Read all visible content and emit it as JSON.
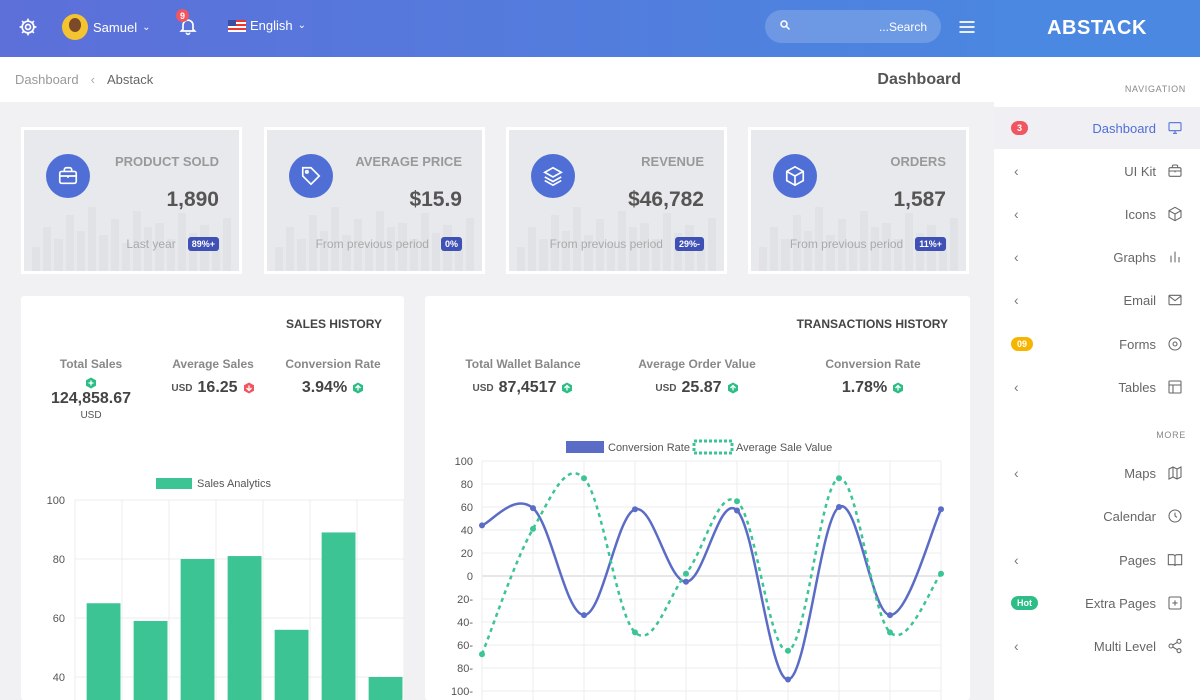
{
  "topbar": {
    "user_name": "Samuel",
    "notifications": "9",
    "language": "English",
    "search_placeholder": "...Search"
  },
  "brand": "ABSTACK",
  "breadcrumb": {
    "home": "Dashboard",
    "current": "Abstack"
  },
  "page_title": "Dashboard",
  "stats": [
    {
      "label": "PRODUCT SOLD",
      "value": "1,890",
      "sub": "Last year",
      "badge": "89%+",
      "icon": "briefcase-icon"
    },
    {
      "label": "AVERAGE PRICE",
      "value": "$15.9",
      "sub": "From previous period",
      "badge": "0%",
      "icon": "tag-icon"
    },
    {
      "label": "REVENUE",
      "value": "$46,782",
      "sub": "From previous period",
      "badge": "29%-",
      "icon": "layers-icon"
    },
    {
      "label": "ORDERS",
      "value": "1,587",
      "sub": "From previous period",
      "badge": "11%+",
      "icon": "box-icon"
    }
  ],
  "sales": {
    "title": "SALES HISTORY",
    "kpis": [
      {
        "label": "Total Sales",
        "value": "124,858.67",
        "unit": "USD"
      },
      {
        "label": "Average Sales",
        "value": "16.25",
        "prefix": "USD"
      },
      {
        "label": "Conversion Rate",
        "value": "3.94%"
      }
    ]
  },
  "transactions": {
    "title": "TRANSACTIONS HISTORY",
    "kpis": [
      {
        "label": "Total Wallet Balance",
        "value": "87,4517",
        "prefix": "USD"
      },
      {
        "label": "Average Order Value",
        "value": "25.87",
        "prefix": "USD"
      },
      {
        "label": "Conversion Rate",
        "value": "1.78%"
      }
    ]
  },
  "chart_data": [
    {
      "type": "bar",
      "series": [
        {
          "name": "Sales Analytics",
          "values": [
            65,
            59,
            80,
            81,
            56,
            89,
            40
          ]
        }
      ],
      "categories": [
        "",
        "",
        "",
        "",
        "",
        "",
        ""
      ],
      "ylim": [
        40,
        100
      ],
      "yticks": [
        "100",
        "80",
        "60",
        "40"
      ],
      "color": "#3cc495",
      "legend": "top"
    },
    {
      "type": "line",
      "series": [
        {
          "name": "Conversion Rate",
          "values": [
            44,
            59,
            -34,
            58,
            -5,
            57,
            -90,
            60,
            -34,
            58
          ],
          "color": "#5b6cc6",
          "style": "solid"
        },
        {
          "name": "Average Sale Value",
          "values": [
            -68,
            41,
            85,
            -49,
            2,
            65,
            -65,
            85,
            -49,
            2
          ],
          "color": "#3cc495",
          "style": "dashed"
        }
      ],
      "ylim": [
        -100,
        100
      ],
      "yticks": [
        "100",
        "80",
        "60",
        "40",
        "20",
        "0",
        "20-",
        "40-",
        "60-",
        "80-",
        "100-"
      ],
      "legend": "top"
    }
  ],
  "sidebar": {
    "navigation_header": "NAVIGATION",
    "more_header": "MORE",
    "items": [
      {
        "label": "Dashboard",
        "badge": "3",
        "badge_color": "#f05560",
        "active": true,
        "icon": "monitor-icon"
      },
      {
        "label": "UI Kit",
        "chevron": "‹",
        "icon": "briefcase-icon"
      },
      {
        "label": "Icons",
        "chevron": "‹",
        "icon": "box-icon"
      },
      {
        "label": "Graphs",
        "chevron": "‹",
        "icon": "bar-chart-icon"
      },
      {
        "label": "Email",
        "chevron": "‹",
        "icon": "mail-icon"
      },
      {
        "label": "Forms",
        "badge": "09",
        "badge_color": "#f6b500",
        "icon": "target-icon"
      },
      {
        "label": "Tables",
        "chevron": "‹",
        "icon": "layout-icon"
      },
      {
        "label": "Maps",
        "chevron": "‹",
        "icon": "map-icon"
      },
      {
        "label": "Calendar",
        "icon": "clock-icon"
      },
      {
        "label": "Pages",
        "chevron": "‹",
        "icon": "book-icon"
      },
      {
        "label": "Extra Pages",
        "badge": "Hot",
        "badge_color": "#2dbd86",
        "icon": "plus-square-icon"
      },
      {
        "label": "Multi Level",
        "chevron": "‹",
        "icon": "share-icon"
      }
    ]
  }
}
